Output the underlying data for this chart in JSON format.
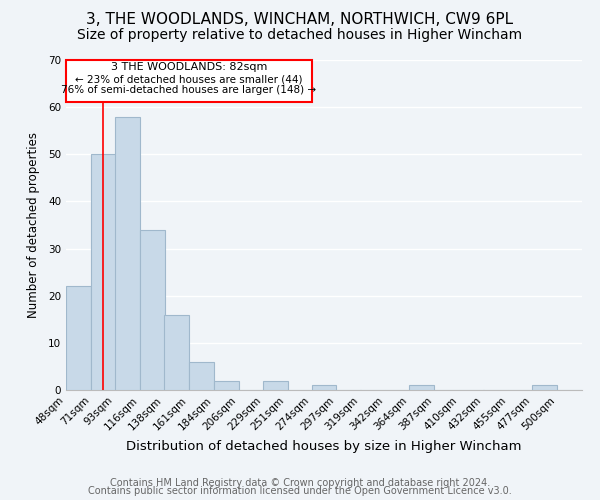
{
  "title": "3, THE WOODLANDS, WINCHAM, NORTHWICH, CW9 6PL",
  "subtitle": "Size of property relative to detached houses in Higher Wincham",
  "xlabel": "Distribution of detached houses by size in Higher Wincham",
  "ylabel": "Number of detached properties",
  "footer_lines": [
    "Contains HM Land Registry data © Crown copyright and database right 2024.",
    "Contains public sector information licensed under the Open Government Licence v3.0."
  ],
  "bin_labels": [
    "48sqm",
    "71sqm",
    "93sqm",
    "116sqm",
    "138sqm",
    "161sqm",
    "184sqm",
    "206sqm",
    "229sqm",
    "251sqm",
    "274sqm",
    "297sqm",
    "319sqm",
    "342sqm",
    "364sqm",
    "387sqm",
    "410sqm",
    "432sqm",
    "455sqm",
    "477sqm",
    "500sqm"
  ],
  "bar_values": [
    22,
    50,
    58,
    34,
    16,
    6,
    2,
    0,
    2,
    0,
    1,
    0,
    0,
    0,
    1,
    0,
    0,
    0,
    0,
    1,
    0
  ],
  "bar_color": "#c8d9e8",
  "bar_edge_color": "#a0b8cc",
  "ylim": [
    0,
    70
  ],
  "yticks": [
    0,
    10,
    20,
    30,
    40,
    50,
    60,
    70
  ],
  "annotation_text_line1": "3 THE WOODLANDS: 82sqm",
  "annotation_text_line2": "← 23% of detached houses are smaller (44)",
  "annotation_text_line3": "76% of semi-detached houses are larger (148) →",
  "property_line_x": 82,
  "background_color": "#f0f4f8",
  "plot_bg_color": "#f0f4f8",
  "grid_color": "#ffffff",
  "title_fontsize": 11,
  "subtitle_fontsize": 10,
  "xlabel_fontsize": 9.5,
  "ylabel_fontsize": 8.5,
  "tick_fontsize": 7.5,
  "footer_fontsize": 7
}
